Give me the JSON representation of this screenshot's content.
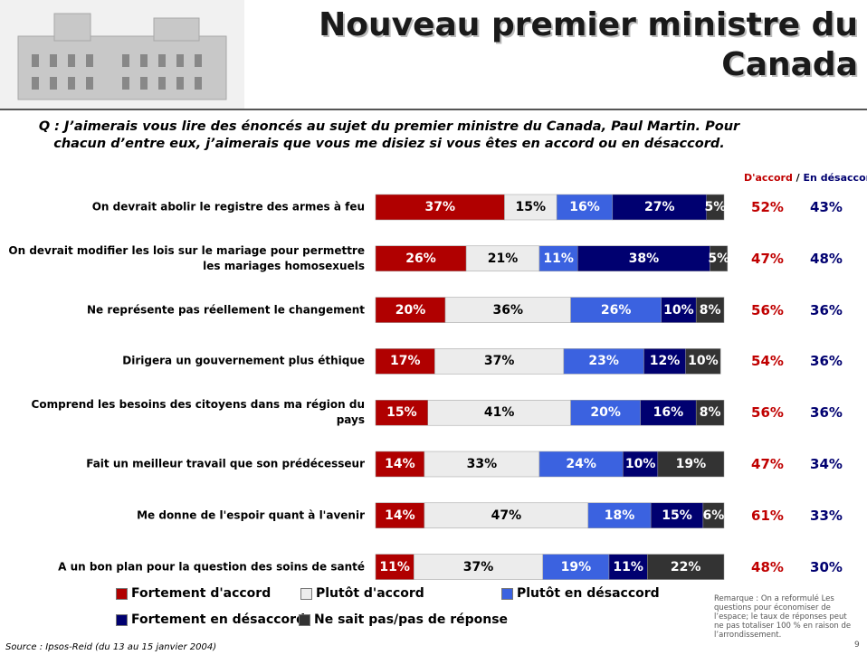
{
  "title": [
    "Nouveau premier ministre du",
    "Canada"
  ],
  "page_number": "9",
  "source": "Source : Ipsos-Reid (du 13 au 15 janvier 2004)",
  "remark": "Remarque : On a reformulé Les questions pour économiser de l’espace; le taux de réponses peut ne pas totaliser 100 % en raison de l’arrondissement.",
  "chart_data": {
    "type": "stacked-bar-horizontal",
    "question": "Q : J’aimerais vous lire des énoncés au sujet du premier ministre du Canada, Paul Martin. Pour chacun d’entre eux, j’aimerais que vous me disiez si vous êtes en accord ou en désaccord.",
    "categories": [
      "On devrait abolir le registre des armes à feu",
      "On devrait modifier les lois sur le mariage pour permettre les mariages homosexuels",
      "Ne représente pas réellement le changement",
      "Dirigera un gouvernement plus éthique",
      "Comprend les besoins des citoyens dans ma région du pays",
      "Fait un meilleur travail que son prédécesseur",
      "Me donne de l'espoir quant à l'avenir",
      "A un bon plan pour la question des soins de santé"
    ],
    "series": [
      {
        "name": "Fortement d'accord",
        "color": "#b00000",
        "label_color": "#ffffff",
        "values": [
          37,
          26,
          20,
          17,
          15,
          14,
          14,
          11
        ],
        "value_labels": [
          "37%",
          "26%",
          "20%",
          "17%",
          "15%",
          "14%",
          "14%",
          "11%"
        ]
      },
      {
        "name": "Plutôt d'accord",
        "color": "#ececec",
        "label_color": "#000000",
        "values": [
          15,
          21,
          36,
          37,
          41,
          33,
          47,
          37
        ],
        "value_labels": [
          "15%",
          "21%",
          "36%",
          "37%",
          "41%",
          "33%",
          "47%",
          "37%"
        ]
      },
      {
        "name": "Plutôt en désaccord",
        "color": "#3b62e0",
        "label_color": "#ffffff",
        "values": [
          16,
          11,
          26,
          23,
          20,
          24,
          18,
          19
        ],
        "value_labels": [
          "16%",
          "11%",
          "26%",
          "23%",
          "20%",
          "24%",
          "18%",
          "19%"
        ]
      },
      {
        "name": "Fortement en désaccord",
        "color": "#000070",
        "label_color": "#ffffff",
        "values": [
          27,
          38,
          10,
          12,
          16,
          10,
          15,
          11
        ],
        "value_labels": [
          "27%",
          "38%",
          "10%",
          "12%",
          "16%",
          "10%",
          "15%",
          "11%"
        ]
      },
      {
        "name": "Ne sait pas/pas de réponse",
        "color": "#333333",
        "label_color": "#ffffff",
        "values": [
          5,
          5,
          8,
          10,
          8,
          19,
          6,
          22
        ],
        "value_labels": [
          "5%",
          "5%",
          "8%",
          "10%",
          "8%",
          "19%",
          "6%",
          "22%"
        ]
      }
    ],
    "summary_separator": "/",
    "summary_columns": [
      {
        "name": "D'accord",
        "color": "#c00000",
        "values": [
          52,
          47,
          56,
          54,
          56,
          47,
          61,
          48
        ],
        "value_labels": [
          "52%",
          "47%",
          "56%",
          "54%",
          "56%",
          "47%",
          "61%",
          "48%"
        ]
      },
      {
        "name": "En désaccord",
        "color": "#000070",
        "values": [
          43,
          48,
          36,
          36,
          36,
          34,
          33,
          30
        ],
        "value_labels": [
          "43%",
          "48%",
          "36%",
          "36%",
          "36%",
          "34%",
          "33%",
          "30%"
        ]
      }
    ]
  }
}
